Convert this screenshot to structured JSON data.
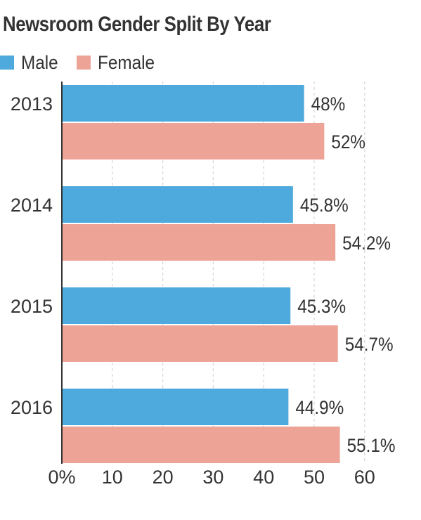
{
  "chart_data": {
    "type": "bar",
    "orientation": "horizontal",
    "title": "Newsroom Gender Split By Year",
    "categories": [
      "2013",
      "2014",
      "2015",
      "2016"
    ],
    "series": [
      {
        "name": "Male",
        "color": "#4ea9dc",
        "values": [
          48,
          45.8,
          45.3,
          44.9
        ],
        "labels": [
          "48%",
          "45.8%",
          "45.3%",
          "44.9%"
        ]
      },
      {
        "name": "Female",
        "color": "#eda497",
        "values": [
          52,
          54.2,
          54.7,
          55.1
        ],
        "labels": [
          "52%",
          "54.2%",
          "54.7%",
          "55.1%"
        ]
      }
    ],
    "xlim": [
      0,
      60
    ],
    "xticks": [
      "0%",
      "10",
      "20",
      "30",
      "40",
      "50",
      "60"
    ],
    "grid": "vertical dashed",
    "legend": "top-left"
  }
}
